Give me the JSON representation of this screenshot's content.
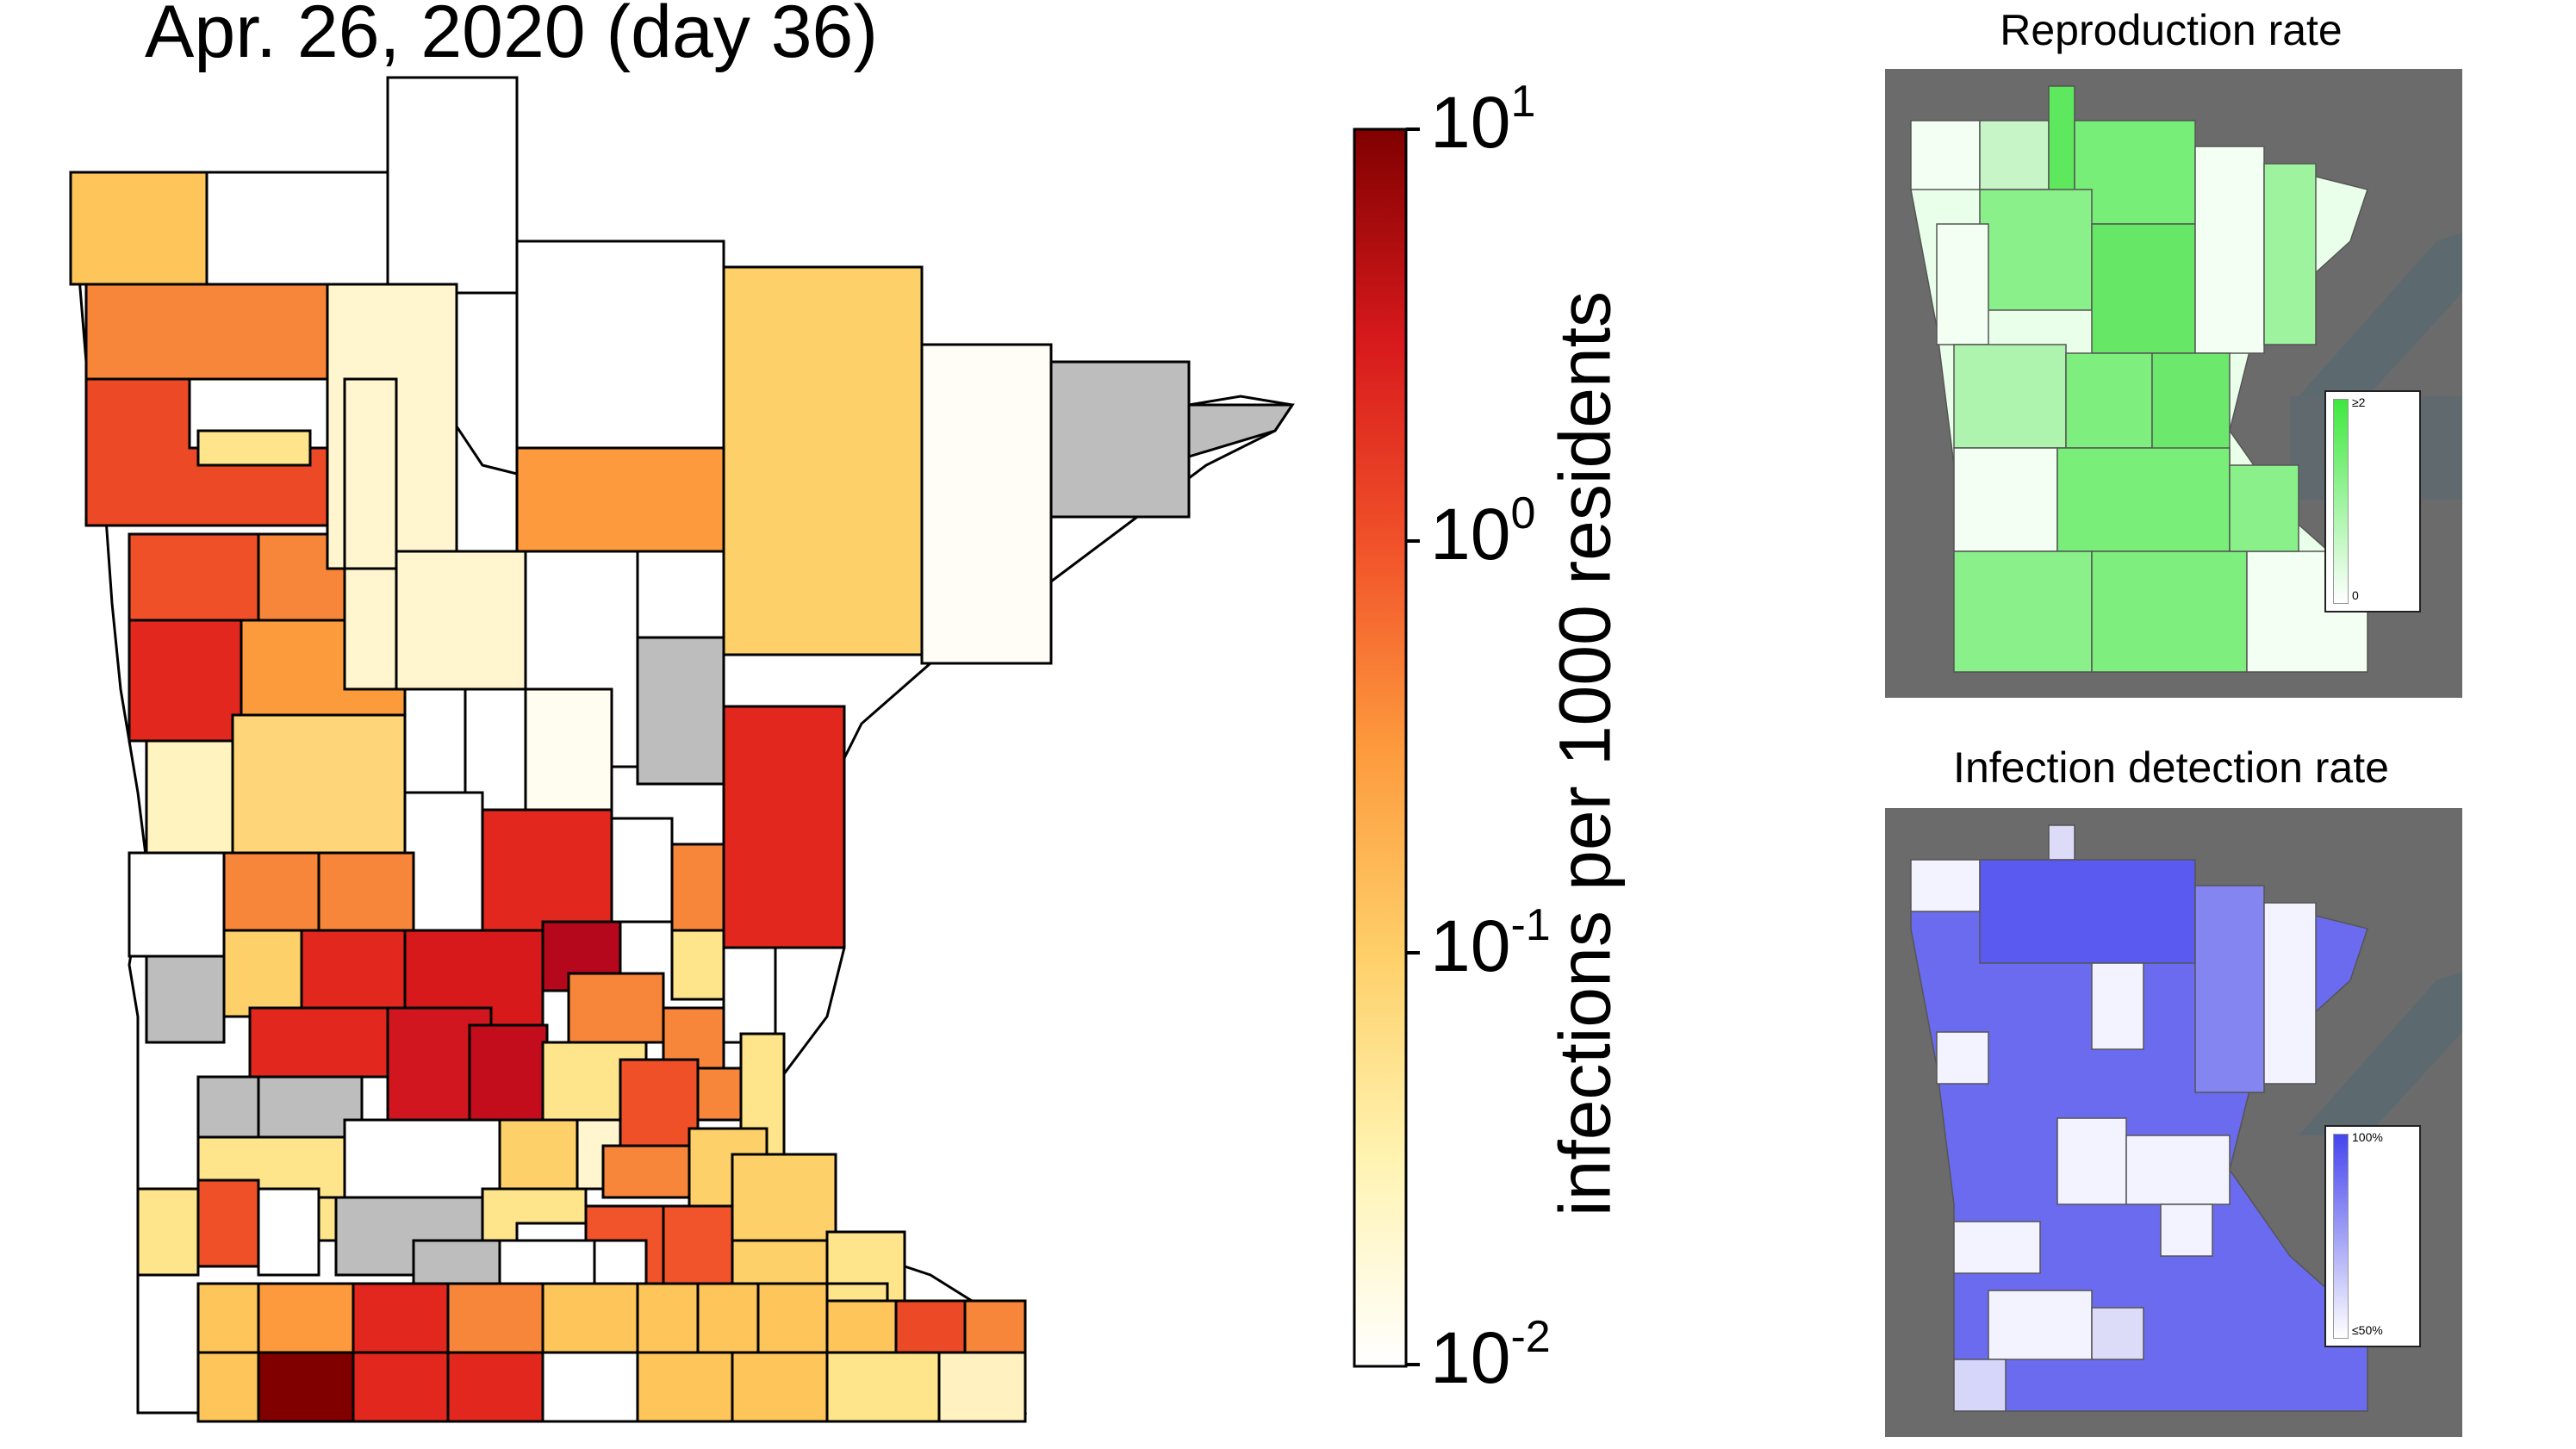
{
  "title": "Apr. 26, 2020 (day 36)",
  "colorbar": {
    "label": "infections per 1000 residents",
    "ticks": [
      {
        "base": "10",
        "exp": "1",
        "value": 10
      },
      {
        "base": "10",
        "exp": "0",
        "value": 1
      },
      {
        "base": "10",
        "exp": "-1",
        "value": 0.1
      },
      {
        "base": "10",
        "exp": "-2",
        "value": 0.01
      }
    ],
    "scale": "log",
    "colors": [
      "#ffffff",
      "#fff3b0",
      "#fed06a",
      "#fd9a3d",
      "#f1532a",
      "#d7191c",
      "#800000"
    ]
  },
  "panels": {
    "reproduction": {
      "title": "Reproduction rate",
      "legend_max": "≥2",
      "legend_min": "0",
      "color": "#3ee83e"
    },
    "detection": {
      "title": "Infection detection rate",
      "legend_max": "100%",
      "legend_min": "≤50%",
      "color": "#4545ee"
    }
  }
}
